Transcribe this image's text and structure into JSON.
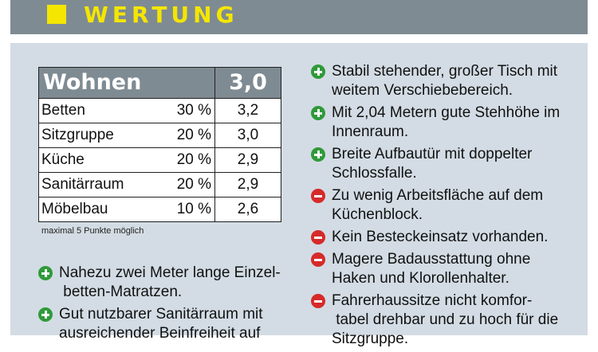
{
  "header": {
    "title": "WERTUNG",
    "accent": "#f4e600",
    "bar_color": "#7f8b93"
  },
  "score": {
    "category": "Wohnen",
    "total": "3,0",
    "rows": [
      {
        "name": "Betten",
        "weight": "30 %",
        "grade": "3,2"
      },
      {
        "name": "Sitzgruppe",
        "weight": "20 %",
        "grade": "3,0"
      },
      {
        "name": "Küche",
        "weight": "20 %",
        "grade": "2,9"
      },
      {
        "name": "Sanitärraum",
        "weight": "20 %",
        "grade": "2,9"
      },
      {
        "name": "Möbelbau",
        "weight": "10 %",
        "grade": "2,6"
      }
    ],
    "note": "maximal 5 Punkte möglich"
  },
  "left_list": [
    {
      "type": "plus",
      "icon": "plus-circle-icon",
      "text": "Nahezu zwei Meter lange Einzel- betten-Matratzen."
    },
    {
      "type": "plus",
      "icon": "plus-circle-icon",
      "text": "Gut nutzbarer Sanitärraum mit ausreichender Beinfreiheit auf"
    }
  ],
  "right_list": [
    {
      "type": "plus",
      "icon": "plus-circle-icon",
      "text": "Stabil stehender, großer Tisch mit weitem Verschiebebereich."
    },
    {
      "type": "plus",
      "icon": "plus-circle-icon",
      "text": "Mit 2,04 Metern gute Stehhöhe im Innenraum."
    },
    {
      "type": "plus",
      "icon": "plus-circle-icon",
      "text": "Breite Aufbautür mit doppelter Schlossfalle."
    },
    {
      "type": "minus",
      "icon": "minus-circle-icon",
      "text": "Zu wenig Arbeitsfläche auf dem Küchenblock."
    },
    {
      "type": "minus",
      "icon": "minus-circle-icon",
      "text": "Kein Besteckeinsatz vorhanden."
    },
    {
      "type": "minus",
      "icon": "minus-circle-icon",
      "text": "Magere Badausstattung ohne Haken und Klorollenhalter."
    },
    {
      "type": "minus",
      "icon": "minus-circle-icon",
      "text": "Fahrerhaussitze nicht komfor- tabel drehbar und zu hoch für die Sitzgruppe."
    }
  ]
}
